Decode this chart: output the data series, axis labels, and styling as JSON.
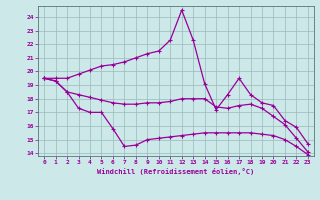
{
  "xlabel": "Windchill (Refroidissement éolien,°C)",
  "xlim": [
    -0.5,
    23.5
  ],
  "ylim": [
    13.8,
    24.8
  ],
  "yticks": [
    14,
    15,
    16,
    17,
    18,
    19,
    20,
    21,
    22,
    23,
    24
  ],
  "xticks": [
    0,
    1,
    2,
    3,
    4,
    5,
    6,
    7,
    8,
    9,
    10,
    11,
    12,
    13,
    14,
    15,
    16,
    17,
    18,
    19,
    20,
    21,
    22,
    23
  ],
  "bg_color": "#cce8e8",
  "line_color": "#990099",
  "grid_color": "#99bbbb",
  "line1_x": [
    0,
    1,
    2,
    3,
    4,
    5,
    6,
    7,
    8,
    9,
    10,
    11,
    12,
    13,
    14,
    15,
    16,
    17,
    18,
    19,
    20,
    21,
    22,
    23
  ],
  "line1_y": [
    19.5,
    19.5,
    19.5,
    19.8,
    20.1,
    20.4,
    20.5,
    20.7,
    21.0,
    21.3,
    21.5,
    22.3,
    24.5,
    22.3,
    19.1,
    17.2,
    18.3,
    19.5,
    18.3,
    17.7,
    17.5,
    16.4,
    15.9,
    14.7
  ],
  "line2_x": [
    0,
    1,
    2,
    3,
    4,
    5,
    6,
    7,
    8,
    9,
    10,
    11,
    12,
    13,
    14,
    15,
    16,
    17,
    18,
    19,
    20,
    21,
    22,
    23
  ],
  "line2_y": [
    19.5,
    19.3,
    18.5,
    18.3,
    18.1,
    17.9,
    17.7,
    17.6,
    17.6,
    17.7,
    17.7,
    17.8,
    18.0,
    18.0,
    18.0,
    17.4,
    17.3,
    17.5,
    17.6,
    17.3,
    16.7,
    16.1,
    15.1,
    14.1
  ],
  "line3_x": [
    0,
    1,
    2,
    3,
    4,
    5,
    6,
    7,
    8,
    9,
    10,
    11,
    12,
    13,
    14,
    15,
    16,
    17,
    18,
    19,
    20,
    21,
    22,
    23
  ],
  "line3_y": [
    19.5,
    19.3,
    18.5,
    17.3,
    17.0,
    17.0,
    15.8,
    14.5,
    14.6,
    15.0,
    15.1,
    15.2,
    15.3,
    15.4,
    15.5,
    15.5,
    15.5,
    15.5,
    15.5,
    15.4,
    15.3,
    15.0,
    14.5,
    13.9
  ]
}
